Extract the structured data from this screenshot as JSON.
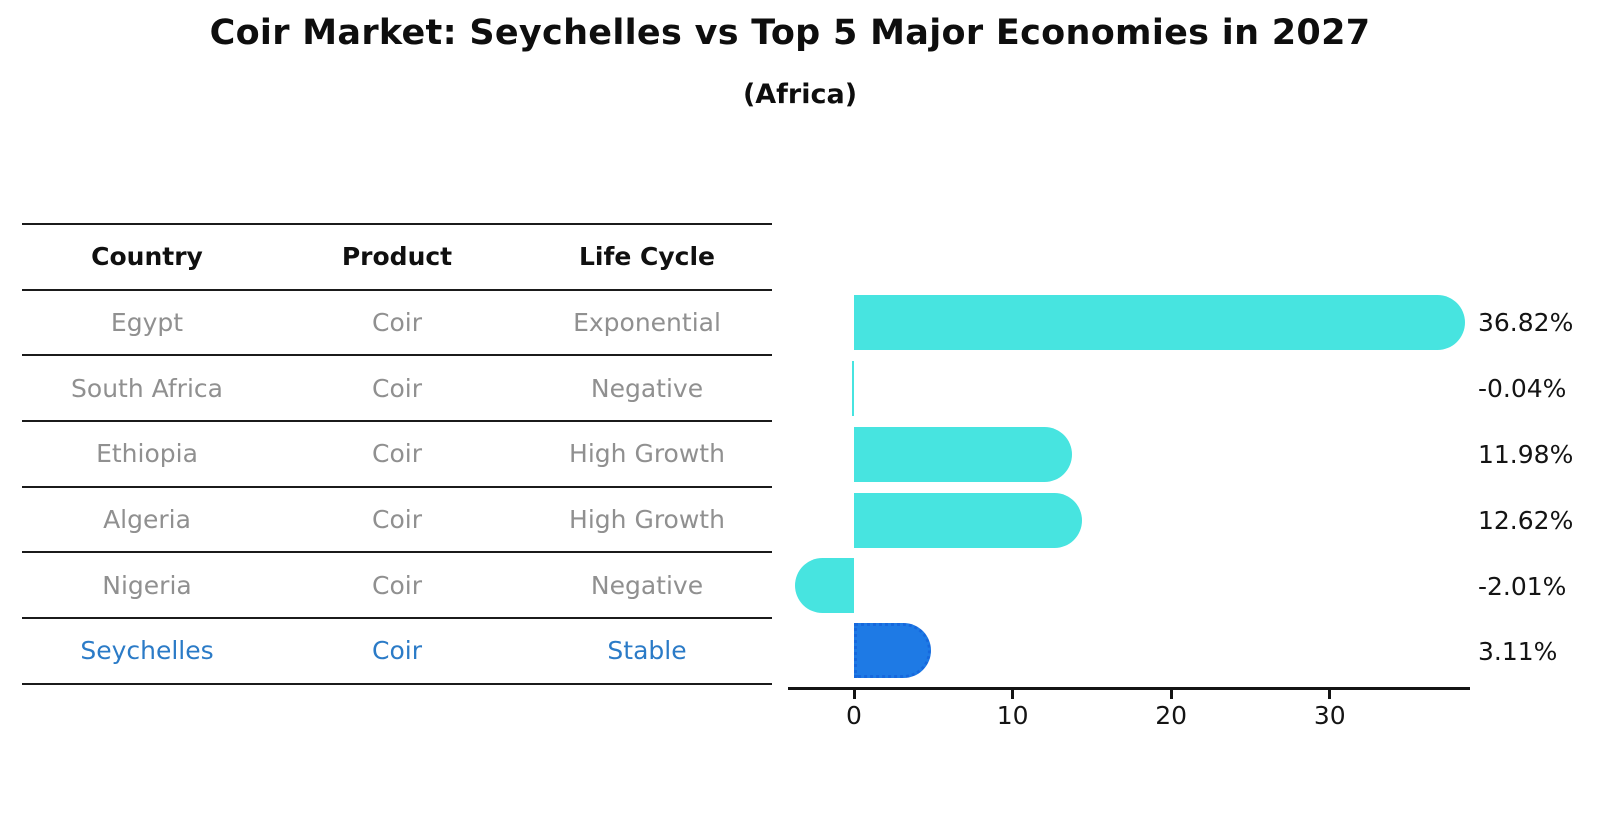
{
  "title": "Coir Market: Seychelles vs Top 5 Major Economies in 2027",
  "subtitle": "(Africa)",
  "table": {
    "columns": [
      "Country",
      "Product",
      "Life Cycle"
    ],
    "rows": [
      {
        "country": "Egypt",
        "product": "Coir",
        "life_cycle": "Exponential"
      },
      {
        "country": "South Africa",
        "product": "Coir",
        "life_cycle": "Negative"
      },
      {
        "country": "Ethiopia",
        "product": "Coir",
        "life_cycle": "High Growth"
      },
      {
        "country": "Algeria",
        "product": "Coir",
        "life_cycle": "High Growth"
      },
      {
        "country": "Nigeria",
        "product": "Coir",
        "life_cycle": "Negative"
      },
      {
        "country": "Seychelles",
        "product": "Coir",
        "life_cycle": "Stable"
      }
    ],
    "highlight_row": "Seychelles"
  },
  "chart_data": {
    "type": "bar",
    "orientation": "horizontal",
    "title": "Coir Market: Seychelles vs Top 5 Major Economies in 2027",
    "subtitle": "(Africa)",
    "categories": [
      "Egypt",
      "South Africa",
      "Ethiopia",
      "Algeria",
      "Nigeria",
      "Seychelles"
    ],
    "values": [
      36.82,
      -0.04,
      11.98,
      12.62,
      -2.01,
      3.11
    ],
    "value_labels": [
      "36.82%",
      "-0.04%",
      "11.98%",
      "12.62%",
      "-2.01%",
      "3.11%"
    ],
    "unit": "%",
    "xticks": [
      0,
      10,
      20,
      30
    ],
    "xlim": [
      -4.2,
      38.9
    ],
    "grid": false,
    "legend": "none",
    "highlight_index": 5,
    "colors": {
      "default_bar": "#47E4E0",
      "highlight_bar": "#1E7AE5",
      "highlight_border": "#1668DD",
      "highlight_text": "#2B7BC7",
      "table_text": "#909090",
      "axis": "#141414"
    }
  }
}
